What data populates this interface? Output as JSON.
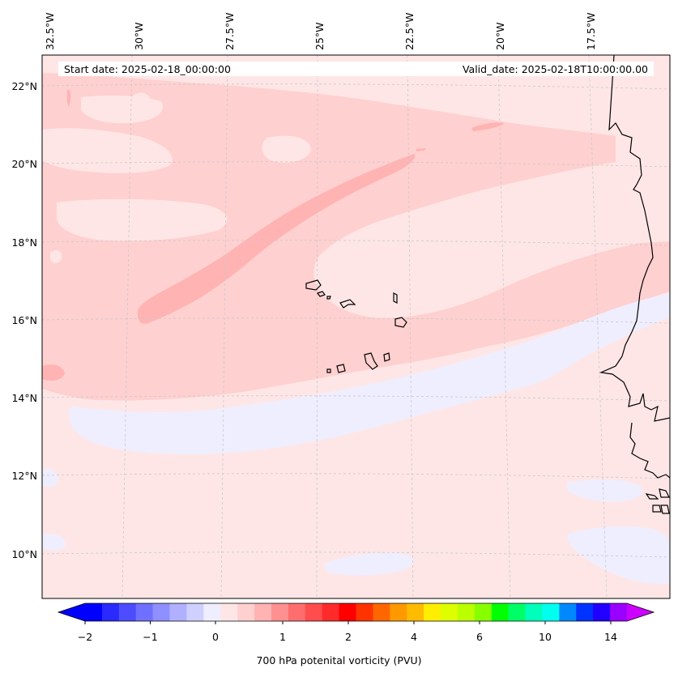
{
  "map": {
    "start_date": "Start date: 2025-02-18_00:00:00",
    "valid_date": "Valid_date: 2025-02-18T10:00:00.00",
    "lon_labels": [
      "32.5°W",
      "30°W",
      "27.5°W",
      "25°W",
      "22.5°W",
      "20°W",
      "17.5°W"
    ],
    "lat_labels": [
      "22°N",
      "20°N",
      "18°N",
      "16°N",
      "14°N",
      "12°N",
      "10°N"
    ],
    "colors": {
      "very_light_pink": "#ffe6e6",
      "light_pink": "#ffd0d0",
      "pink": "#ffb3b3",
      "pale_lavender": "#eeeeff",
      "coastline": "#000000",
      "grid": "#c8c8c8"
    }
  },
  "colorbar": {
    "colors": [
      "#0000ff",
      "#2a2aff",
      "#4d4dff",
      "#7070ff",
      "#8f8fff",
      "#b0b0ff",
      "#d0d0ff",
      "#eeeeff",
      "#ffe6e6",
      "#ffd0d0",
      "#ffb3b3",
      "#ff9090",
      "#ff6e6e",
      "#ff4c4c",
      "#ff2a2a",
      "#ff0000",
      "#ff3300",
      "#ff6600",
      "#ff9900",
      "#ffbb00",
      "#ffee00",
      "#ddff00",
      "#bbff00",
      "#88ff00",
      "#00ff00",
      "#00ff66",
      "#00ffbb",
      "#00ffee",
      "#0088ff",
      "#0033ff",
      "#2200ff",
      "#9900ff"
    ],
    "under_color": "#0000ff",
    "over_color": "#cc00ff",
    "tick_labels": [
      "−2",
      "−1",
      "0",
      "1",
      "2",
      "4",
      "6",
      "10",
      "14"
    ],
    "label": "700 hPa potenital vorticity (PVU)"
  }
}
